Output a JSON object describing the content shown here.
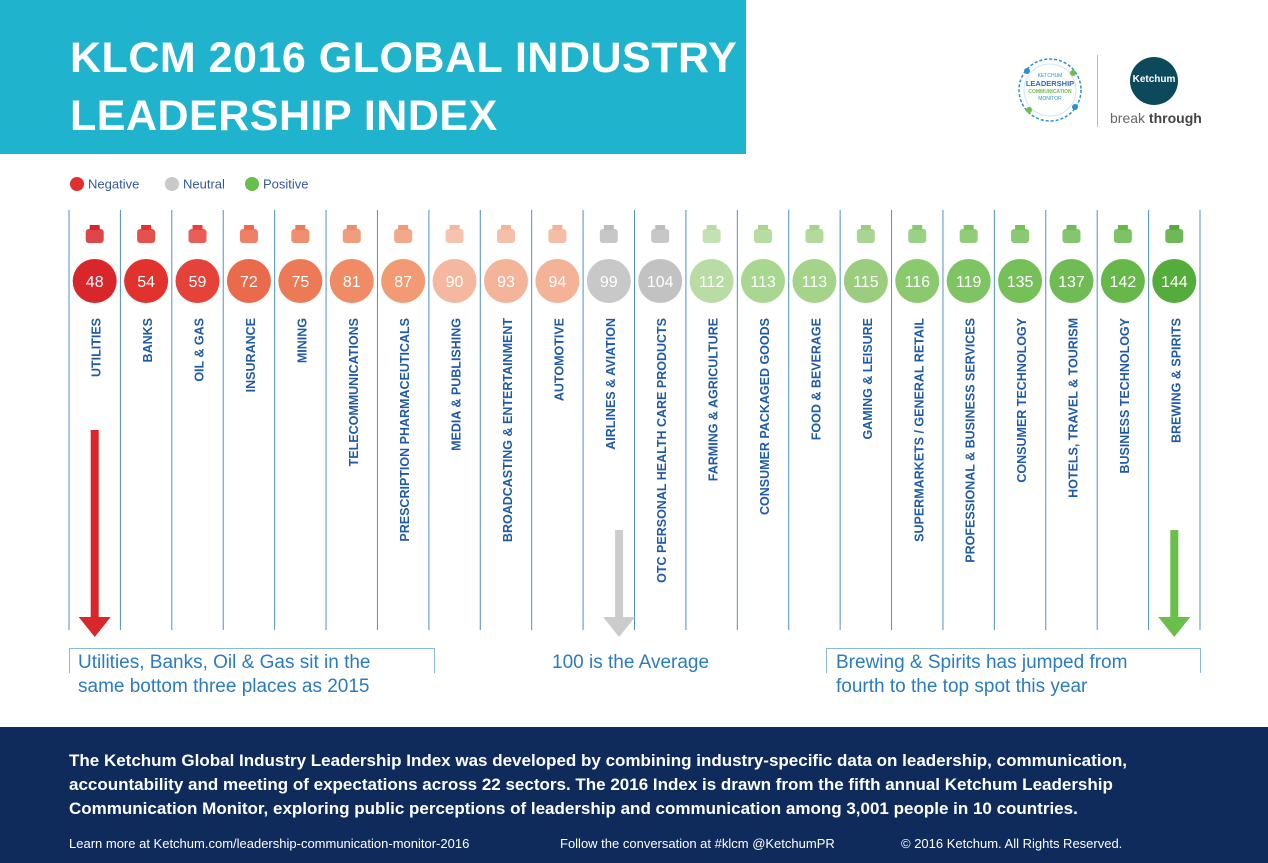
{
  "header": {
    "title_line1": "KLCM 2016 GLOBAL INDUSTRY",
    "title_line2": "LEADERSHIP INDEX",
    "seal_small": "KETCHUM",
    "seal_main1": "LEADERSHIP",
    "seal_main2": "COMMUNICATION",
    "seal_sub": "MONITOR",
    "brand": "Ketchum",
    "tagline_a": "break",
    "tagline_b": "through"
  },
  "legend": [
    {
      "label": "Negative",
      "color": "#e02f2f"
    },
    {
      "label": "Neutral",
      "color": "#c8c8c8"
    },
    {
      "label": "Positive",
      "color": "#6abf4b"
    }
  ],
  "chart_data": {
    "type": "bar",
    "categories": [
      "UTILITIES",
      "BANKS",
      "OIL & GAS",
      "INSURANCE",
      "MINING",
      "TELECOMMUNICATIONS",
      "PRESCRIPTION PHARMACEUTICALS",
      "MEDIA & PUBLISHING",
      "BROADCASTING & ENTERTAINMENT",
      "AUTOMOTIVE",
      "AIRLINES & AVIATION",
      "OTC PERSONAL HEALTH CARE PRODUCTS",
      "FARMING & AGRICULTURE",
      "CONSUMER PACKAGED GOODS",
      "FOOD & BEVERAGE",
      "GAMING & LEISURE",
      "SUPERMARKETS / GENERAL RETAIL",
      "PROFESSIONAL & BUSINESS SERVICES",
      "CONSUMER TECHNOLOGY",
      "HOTELS, TRAVEL & TOURISM",
      "BUSINESS TECHNOLOGY",
      "BREWING & SPIRITS"
    ],
    "values": [
      48,
      54,
      59,
      72,
      75,
      81,
      87,
      90,
      93,
      94,
      99,
      104,
      112,
      113,
      113,
      115,
      116,
      119,
      135,
      137,
      142,
      144
    ],
    "colors": [
      "#d8262a",
      "#e1322e",
      "#e5423a",
      "#ea6a4c",
      "#ed7a57",
      "#ef8b65",
      "#f19a74",
      "#f4b8a0",
      "#f4b49a",
      "#f4b296",
      "#c8c8c8",
      "#c2c2c2",
      "#b8dca4",
      "#a9d690",
      "#a4d389",
      "#9acd7e",
      "#8ac96e",
      "#7ec462",
      "#76c05a",
      "#6fbc54",
      "#66b84b",
      "#54ad3a"
    ],
    "icons": [
      "power-plant-icon",
      "bank-icon",
      "oil-barrel-icon",
      "umbrella-icon",
      "pickaxe-icon",
      "satellite-dish-icon",
      "mortar-pestle-icon",
      "newspaper-icon",
      "theater-masks-icon",
      "car-icon",
      "airplane-icon",
      "medicine-bottle-icon",
      "tractor-icon",
      "soap-bottle-icon",
      "bowl-icon",
      "gamepad-icon",
      "shopping-cart-icon",
      "briefcase-icon",
      "smartphone-icon",
      "suitcase-icon",
      "monitor-icon",
      "bottle-glass-icon"
    ],
    "average": 100
  },
  "captions": {
    "left": [
      "Utilities, Banks, Oil & Gas sit in the",
      "same bottom three places as 2015"
    ],
    "center": "100 is the Average",
    "right": [
      "Brewing & Spirits has jumped from",
      "fourth to the top spot this year"
    ]
  },
  "footer": {
    "description": "The Ketchum Global Industry Leadership Index was developed by combining industry-specific data on leadership, communication, accountability and meeting of expectations across 22 sectors. The 2016 Index is drawn from the fifth annual Ketchum Leadership Communication Monitor, exploring public perceptions of leadership and communication among 3,001 people in 10 countries.",
    "learn_more": "Learn more at Ketchum.com/leadership-communication-monitor-2016",
    "follow": "Follow the conversation at #klcm @KetchumPR",
    "copyright": "© 2016 Ketchum. All Rights Reserved."
  }
}
